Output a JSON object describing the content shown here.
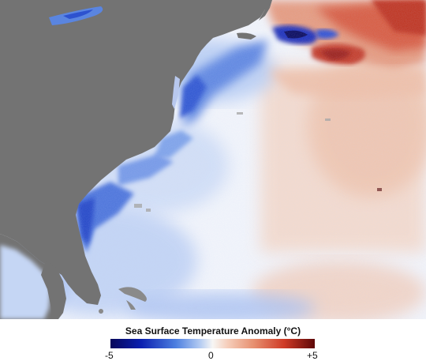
{
  "legend": {
    "title": "Sea Surface Temperature Anomaly (°C)",
    "min_label": "-5",
    "mid_label": "0",
    "max_label": "+5",
    "scale_min": -5,
    "scale_max": 5
  },
  "colors": {
    "land": "#737373",
    "neutral_water": "#f4f6fa",
    "cold_extreme": "#07075a",
    "cold": "#2a4fd0",
    "cool": "#8fb2ee",
    "warm": "#f1b79d",
    "hot": "#cf3a26",
    "hot_extreme": "#5e0808"
  }
}
